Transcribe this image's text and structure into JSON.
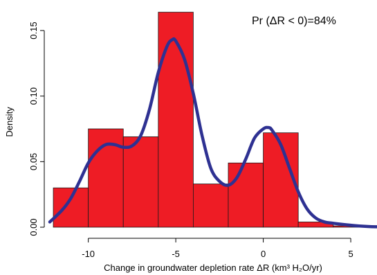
{
  "chart_data": {
    "type": "bar",
    "xlabel": "Change in groundwater depletion rate ΔR (km³ H₂O/yr)",
    "ylabel": "Density",
    "annotation": "Pr (ΔR < 0)=84%",
    "xlim": [
      -12.2,
      6.5
    ],
    "ylim": [
      0,
      0.168
    ],
    "x_ticks": [
      -10,
      -5,
      0,
      5
    ],
    "x_tick_labels": [
      "-10",
      "-5",
      "0",
      "5"
    ],
    "y_ticks": [
      0.0,
      0.05,
      0.1,
      0.15
    ],
    "y_tick_labels": [
      "0.00",
      "0.05",
      "0.10",
      "0.15"
    ],
    "bin_edges": [
      -12,
      -10,
      -8,
      -6,
      -4,
      -2,
      0,
      2,
      4,
      6
    ],
    "bin_values": [
      0.03,
      0.075,
      0.069,
      0.164,
      0.033,
      0.049,
      0.072,
      0.004,
      0.001
    ],
    "bar_color": "#ee1c25",
    "curve_color": "#2e3192",
    "density_curve": {
      "x": [
        -12.2,
        -11.5,
        -11,
        -10.5,
        -10,
        -9.5,
        -9,
        -8.5,
        -8,
        -7.5,
        -7,
        -6.5,
        -6,
        -5.5,
        -5.2,
        -5,
        -4.5,
        -4,
        -3.5,
        -3,
        -2.5,
        -2,
        -1.5,
        -1,
        -0.5,
        0,
        0.3,
        0.5,
        1,
        1.5,
        2,
        2.5,
        3,
        3.5,
        4,
        5,
        6,
        6.5
      ],
      "y": [
        0.004,
        0.013,
        0.022,
        0.035,
        0.049,
        0.058,
        0.063,
        0.063,
        0.061,
        0.062,
        0.07,
        0.09,
        0.118,
        0.138,
        0.143,
        0.142,
        0.128,
        0.102,
        0.07,
        0.045,
        0.035,
        0.032,
        0.038,
        0.052,
        0.068,
        0.075,
        0.076,
        0.074,
        0.063,
        0.045,
        0.027,
        0.014,
        0.007,
        0.004,
        0.003,
        0.0015,
        0.0005,
        0.0003
      ]
    }
  }
}
